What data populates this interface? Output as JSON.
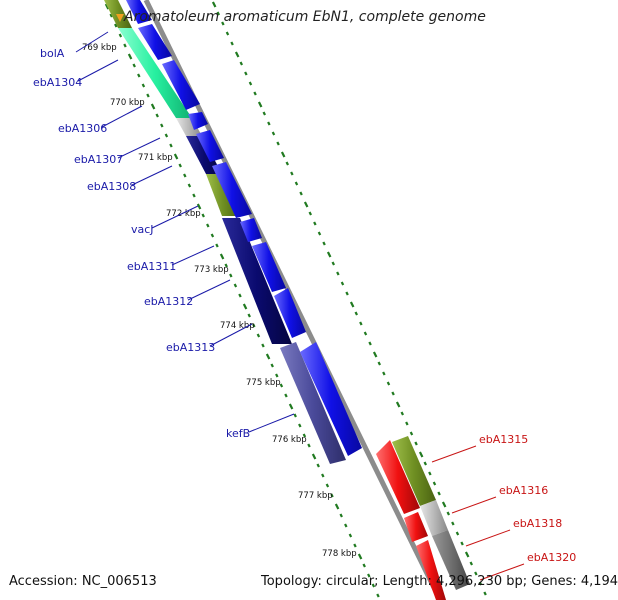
{
  "title": "Aromatoleum aromaticum EbN1, complete genome",
  "footer": {
    "accession": "Accession: NC_006513",
    "topology": "Topology: circular; Length: 4,296,230 bp; Genes: 4,194"
  },
  "colors": {
    "forward_label": "#1a1aa8",
    "reverse_label": "#c81414",
    "blue_gene": "#1010e6",
    "dark_navy": "#0a0a6e",
    "green_gene": "#6f8f22",
    "mint_gene": "#27f0a0",
    "slate_gene": "#4a4a9a",
    "red_gene": "#f01010",
    "gray_gene": "#b8b8b8",
    "dark_gray": "#707070",
    "tick_green": "#207a20"
  },
  "kbp_ticks": [
    {
      "label": "769 kbp"
    },
    {
      "label": "770 kbp"
    },
    {
      "label": "771 kbp"
    },
    {
      "label": "772 kbp"
    },
    {
      "label": "773 kbp"
    },
    {
      "label": "774 kbp"
    },
    {
      "label": "775 kbp"
    },
    {
      "label": "776 kbp"
    },
    {
      "label": "777 kbp"
    },
    {
      "label": "778 kbp"
    }
  ],
  "left_labels": [
    {
      "text": "bolA"
    },
    {
      "text": "ebA1304"
    },
    {
      "text": "ebA1306"
    },
    {
      "text": "ebA1307"
    },
    {
      "text": "ebA1308"
    },
    {
      "text": "vacJ"
    },
    {
      "text": "ebA1311"
    },
    {
      "text": "ebA1312"
    },
    {
      "text": "ebA1313"
    },
    {
      "text": "kefB"
    }
  ],
  "right_labels": [
    {
      "text": "ebA1315"
    },
    {
      "text": "ebA1316"
    },
    {
      "text": "ebA1318"
    },
    {
      "text": "ebA1320"
    }
  ]
}
